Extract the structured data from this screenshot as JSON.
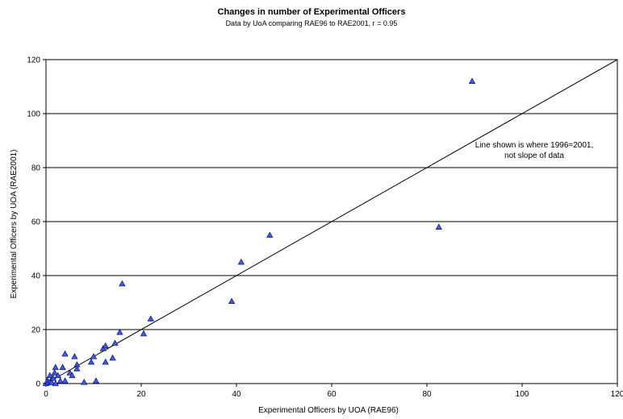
{
  "chart_data": {
    "type": "scatter",
    "title": "Changes in number of Experimental Officers",
    "subtitle": "Data by UoA comparing RAE96 to RAE2001, r = 0.95",
    "xlabel": "Experimental Officers by UOA (RAE96)",
    "ylabel": "Experimental Officers by UOA (RAE2001)",
    "xlim": [
      0,
      120
    ],
    "ylim": [
      0,
      120
    ],
    "xticks": [
      0,
      20,
      40,
      60,
      80,
      100,
      120
    ],
    "yticks": [
      0,
      20,
      40,
      60,
      80,
      100,
      120
    ],
    "grid": "horizontal",
    "reference_line": [
      [
        0,
        0
      ],
      [
        120,
        120
      ]
    ],
    "annotation": [
      "Line shown is where 1996=2001,",
      "not slope of data"
    ],
    "marker_color": "#3b5bff",
    "points": [
      {
        "x": 0,
        "y": 0
      },
      {
        "x": 0.3,
        "y": 1
      },
      {
        "x": 0.5,
        "y": 0.5
      },
      {
        "x": 0.8,
        "y": 3
      },
      {
        "x": 1,
        "y": 1
      },
      {
        "x": 1.2,
        "y": 0.3
      },
      {
        "x": 1.5,
        "y": 2
      },
      {
        "x": 1.8,
        "y": 4
      },
      {
        "x": 2,
        "y": 0
      },
      {
        "x": 2,
        "y": 6
      },
      {
        "x": 2.5,
        "y": 3
      },
      {
        "x": 3,
        "y": 1
      },
      {
        "x": 3.5,
        "y": 6
      },
      {
        "x": 4,
        "y": 1
      },
      {
        "x": 4,
        "y": 11
      },
      {
        "x": 5,
        "y": 4
      },
      {
        "x": 5.5,
        "y": 3
      },
      {
        "x": 6,
        "y": 10
      },
      {
        "x": 6.5,
        "y": 7
      },
      {
        "x": 6.5,
        "y": 5.5
      },
      {
        "x": 8,
        "y": 0.5
      },
      {
        "x": 9.5,
        "y": 8
      },
      {
        "x": 10,
        "y": 10
      },
      {
        "x": 10.5,
        "y": 1
      },
      {
        "x": 12,
        "y": 13
      },
      {
        "x": 12.5,
        "y": 14
      },
      {
        "x": 12.5,
        "y": 8
      },
      {
        "x": 14,
        "y": 9.5
      },
      {
        "x": 14.5,
        "y": 15
      },
      {
        "x": 15.5,
        "y": 19
      },
      {
        "x": 16,
        "y": 37
      },
      {
        "x": 20.5,
        "y": 18.5
      },
      {
        "x": 22,
        "y": 24
      },
      {
        "x": 39,
        "y": 30.5
      },
      {
        "x": 41,
        "y": 45
      },
      {
        "x": 47,
        "y": 55
      },
      {
        "x": 82.5,
        "y": 58
      },
      {
        "x": 89.5,
        "y": 112
      }
    ]
  }
}
